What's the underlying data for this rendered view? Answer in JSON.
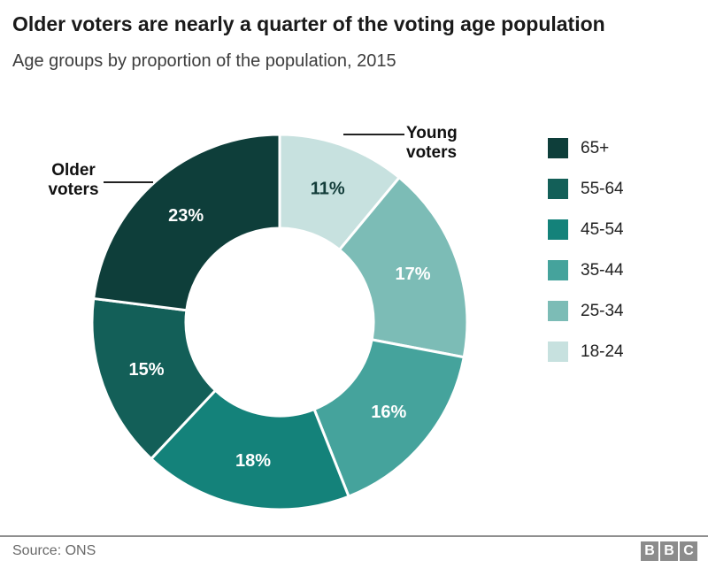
{
  "header": {
    "title": "Older voters are nearly a quarter of the voting age population",
    "subtitle": "Age groups by proportion of the population, 2015"
  },
  "chart_data": {
    "type": "pie",
    "subtype": "donut",
    "title": "Older voters are nearly a quarter of the voting age population",
    "subtitle": "Age groups by proportion of the population, 2015",
    "unit": "%",
    "direction": "clockwise",
    "start_position": "12-o-clock",
    "legend_position": "right",
    "segments": [
      {
        "label": "18-24",
        "value": 11,
        "display": "11%",
        "color": "#c7e1df",
        "value_label_color": "#133d3a"
      },
      {
        "label": "25-34",
        "value": 17,
        "display": "17%",
        "color": "#7cbcb6",
        "value_label_color": "#ffffff"
      },
      {
        "label": "35-44",
        "value": 16,
        "display": "16%",
        "color": "#45a39c",
        "value_label_color": "#ffffff"
      },
      {
        "label": "45-54",
        "value": 18,
        "display": "18%",
        "color": "#14827a",
        "value_label_color": "#ffffff"
      },
      {
        "label": "55-64",
        "value": 15,
        "display": "15%",
        "color": "#135f58",
        "value_label_color": "#ffffff"
      },
      {
        "label": "65+",
        "value": 23,
        "display": "23%",
        "color": "#0e3e3a",
        "value_label_color": "#ffffff"
      }
    ],
    "legend_items": [
      {
        "label": "65+",
        "color": "#0e3e3a"
      },
      {
        "label": "55-64",
        "color": "#135f58"
      },
      {
        "label": "45-54",
        "color": "#14827a"
      },
      {
        "label": "35-44",
        "color": "#45a39c"
      },
      {
        "label": "25-34",
        "color": "#7cbcb6"
      },
      {
        "label": "18-24",
        "color": "#c7e1df"
      }
    ],
    "annotations": [
      {
        "text": "Older voters",
        "target": "65+"
      },
      {
        "text": "Young voters",
        "target": "18-24"
      }
    ]
  },
  "annotation_display": {
    "older": {
      "line1": "Older",
      "line2": "voters"
    },
    "young": {
      "line1": "Young",
      "line2": "voters"
    }
  },
  "footer": {
    "source": "Source: ONS",
    "logo_letters": [
      "B",
      "B",
      "C"
    ]
  }
}
